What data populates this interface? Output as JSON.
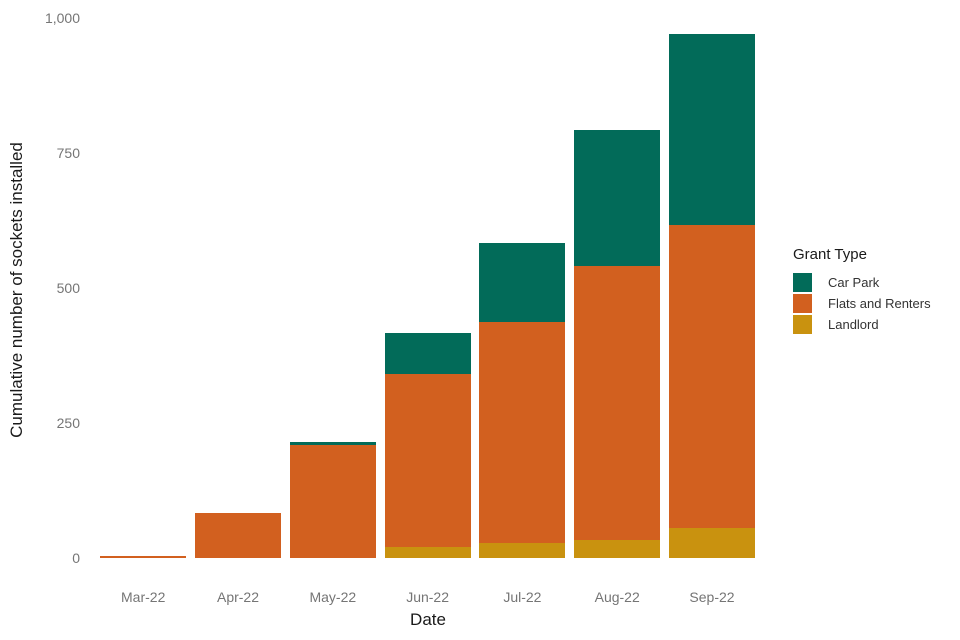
{
  "chart_data": {
    "type": "bar",
    "stacked": true,
    "title": "",
    "xlabel": "Date",
    "ylabel": "Cumulative number of sockets installed",
    "ylim": [
      0,
      1000
    ],
    "yticks": [
      {
        "value": 0,
        "label": "0"
      },
      {
        "value": 250,
        "label": "250"
      },
      {
        "value": 500,
        "label": "500"
      },
      {
        "value": 750,
        "label": "750"
      },
      {
        "value": 1000,
        "label": "1,000"
      }
    ],
    "categories": [
      "Mar-22",
      "Apr-22",
      "May-22",
      "Jun-22",
      "Jul-22",
      "Aug-22",
      "Sep-22"
    ],
    "series": [
      {
        "name": "Landlord",
        "color": "#C9920F",
        "values": [
          0,
          0,
          0,
          20,
          28,
          33,
          56
        ]
      },
      {
        "name": "Flats and Renters",
        "color": "#D2601F",
        "values": [
          3,
          83,
          209,
          321,
          409,
          508,
          561
        ]
      },
      {
        "name": "Car Park",
        "color": "#026B59",
        "values": [
          0,
          0,
          6,
          76,
          146,
          252,
          353
        ]
      }
    ],
    "totals": [
      3,
      83,
      215,
      417,
      583,
      793,
      970
    ],
    "grid": false,
    "legend": {
      "title": "Grant Type",
      "position": "right",
      "entries": [
        {
          "label": "Car Park",
          "color": "#026B59"
        },
        {
          "label": "Flats and Renters",
          "color": "#D2601F"
        },
        {
          "label": "Landlord",
          "color": "#C9920F"
        }
      ]
    }
  }
}
